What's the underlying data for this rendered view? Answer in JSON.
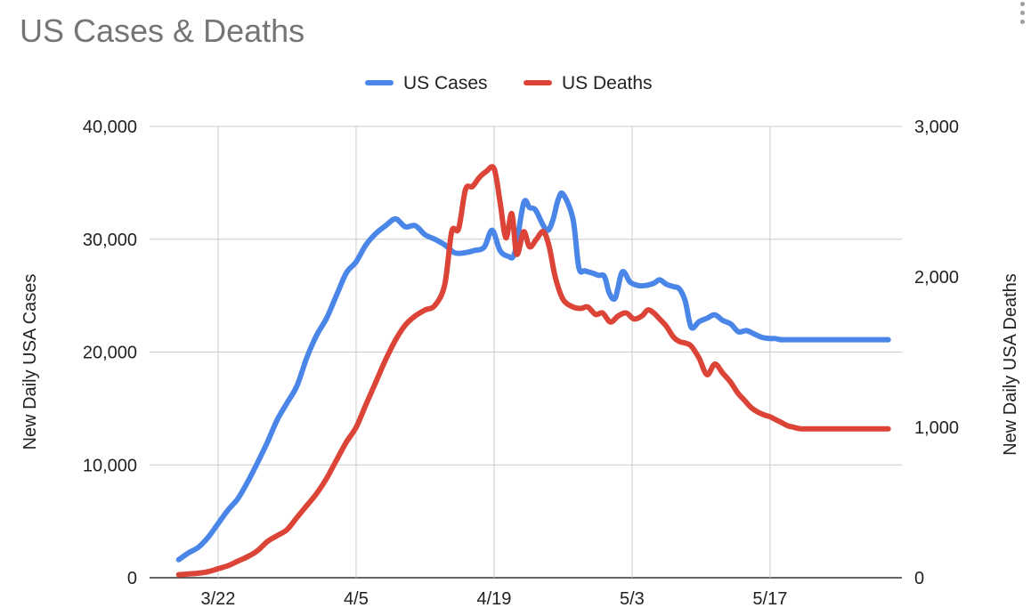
{
  "chart_data": {
    "type": "line",
    "title": "US Cases & Deaths",
    "legend": {
      "position": "top-center"
    },
    "grid": true,
    "x_ticks": [
      "3/22",
      "4/5",
      "4/19",
      "5/3",
      "5/17"
    ],
    "x_tick_days": [
      4,
      18,
      32,
      46,
      60
    ],
    "x_range": [
      0,
      72
    ],
    "left_axis": {
      "label": "New Daily USA Cases",
      "range": [
        0,
        40000
      ],
      "ticks": [
        0,
        10000,
        20000,
        30000,
        40000
      ],
      "tick_labels": [
        "0",
        "10,000",
        "20,000",
        "30,000",
        "40,000"
      ]
    },
    "right_axis": {
      "label": "New Daily USA Deaths",
      "range": [
        0,
        3000
      ],
      "ticks": [
        0,
        1000,
        2000,
        3000
      ],
      "tick_labels": [
        "0",
        "1,000",
        "2,000",
        "3,000"
      ]
    },
    "series": [
      {
        "name": "US Cases",
        "axis": "left",
        "color": "#4a86e8",
        "x": [
          0,
          1,
          2,
          3,
          4,
          5,
          6,
          7,
          8,
          9,
          10,
          11,
          12,
          13,
          14,
          15,
          16,
          17,
          18,
          19,
          20,
          21,
          22,
          23,
          24,
          25,
          26,
          27,
          28,
          29,
          30,
          31,
          31.8,
          32.6,
          33.4,
          34.1,
          35,
          35.6,
          36.2,
          37,
          37.5,
          38,
          38.5,
          39,
          40,
          40.6,
          41.2,
          42,
          42.6,
          43.2,
          43.7,
          44.3,
          45,
          45.8,
          46.6,
          47.4,
          48.2,
          48.8,
          49.5,
          50.2,
          50.8,
          51.4,
          52,
          52.8,
          53.6,
          54.4,
          55.2,
          56,
          56.8,
          57.6,
          58.4,
          59.2,
          60,
          60.5,
          61.1,
          61.8,
          62.5,
          63.3,
          64.1,
          65,
          65.8,
          66.6,
          67.4,
          68.2,
          69,
          69.8,
          70.6,
          71.4,
          72
        ],
        "y": [
          1600,
          2200,
          2700,
          3600,
          4800,
          6000,
          7000,
          8500,
          10200,
          12000,
          14000,
          15500,
          17000,
          19500,
          21500,
          23000,
          25000,
          27000,
          28000,
          29500,
          30500,
          31200,
          31800,
          31100,
          31200,
          30400,
          30000,
          29500,
          28800,
          28800,
          29000,
          29300,
          30800,
          29000,
          28500,
          28800,
          33200,
          32800,
          32600,
          31200,
          30800,
          31800,
          33500,
          34000,
          31800,
          27500,
          27200,
          27000,
          26800,
          26700,
          25200,
          24800,
          27100,
          26200,
          25900,
          25900,
          26100,
          26400,
          26000,
          25800,
          25600,
          24500,
          22200,
          22700,
          23000,
          23300,
          22800,
          22500,
          21800,
          21900,
          21600,
          21300,
          21200,
          21200,
          21100,
          21100,
          21100,
          21100,
          21100,
          21100,
          21100,
          21100,
          21100,
          21100,
          21100,
          21100,
          21100,
          21100,
          21100
        ]
      },
      {
        "name": "US Deaths",
        "axis": "right",
        "color": "#db4437",
        "x": [
          0,
          1,
          2,
          3,
          4,
          5,
          6,
          7,
          8,
          9,
          10,
          11,
          12,
          13,
          14,
          15,
          16,
          17,
          18,
          19,
          20,
          21,
          22,
          23,
          24,
          25,
          26,
          27,
          27.7,
          28.4,
          29.1,
          29.8,
          30.5,
          31.2,
          32,
          32.6,
          33.2,
          33.8,
          34.3,
          35,
          35.6,
          36.3,
          37,
          37.6,
          38.2,
          39,
          40,
          40.8,
          41.5,
          42.3,
          43,
          43.8,
          44.6,
          45.4,
          46.2,
          47,
          47.6,
          48.2,
          48.8,
          49.5,
          50.2,
          50.8,
          51.4,
          52,
          52.8,
          53.6,
          54.4,
          55.2,
          56,
          56.7,
          57.4,
          58.1,
          58.8,
          59.5,
          60,
          60.6,
          61.2,
          61.8,
          62.4,
          63.1,
          63.9,
          64.7,
          65.5,
          66.3,
          67.1,
          67.9,
          68.7,
          69.5,
          70.3,
          71.1,
          72
        ],
        "y": [
          20,
          25,
          30,
          40,
          60,
          80,
          110,
          140,
          180,
          240,
          280,
          320,
          400,
          480,
          560,
          660,
          780,
          900,
          1000,
          1150,
          1300,
          1450,
          1580,
          1680,
          1740,
          1780,
          1810,
          1950,
          2300,
          2320,
          2580,
          2600,
          2660,
          2700,
          2720,
          2500,
          2260,
          2420,
          2150,
          2300,
          2200,
          2250,
          2300,
          2200,
          2000,
          1850,
          1800,
          1790,
          1800,
          1750,
          1760,
          1700,
          1740,
          1760,
          1720,
          1740,
          1780,
          1760,
          1720,
          1670,
          1600,
          1570,
          1560,
          1540,
          1460,
          1350,
          1420,
          1360,
          1300,
          1230,
          1180,
          1130,
          1100,
          1080,
          1070,
          1050,
          1030,
          1010,
          1000,
          990,
          990,
          990,
          990,
          990,
          990,
          990,
          990,
          990,
          990,
          990,
          990
        ]
      }
    ]
  }
}
